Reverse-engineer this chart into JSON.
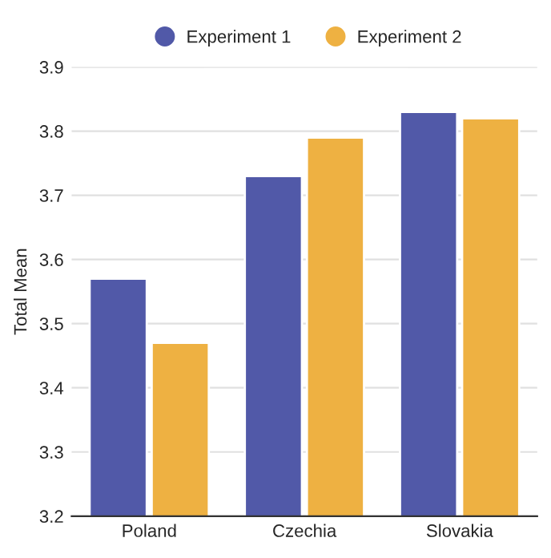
{
  "chart_data": {
    "type": "bar",
    "ylabel": "Total Mean",
    "categories": [
      "Poland",
      "Czechia",
      "Slovakia"
    ],
    "series": [
      {
        "name": "Experiment 1",
        "color": "#5159a8",
        "values": [
          3.57,
          3.73,
          3.83
        ]
      },
      {
        "name": "Experiment 2",
        "color": "#eeb142",
        "values": [
          3.47,
          3.79,
          3.82
        ]
      }
    ],
    "ylim": [
      3.2,
      3.9
    ],
    "yticks": [
      3.2,
      3.3,
      3.4,
      3.5,
      3.6,
      3.7,
      3.8,
      3.9
    ],
    "grid": "y",
    "legend": "top"
  }
}
